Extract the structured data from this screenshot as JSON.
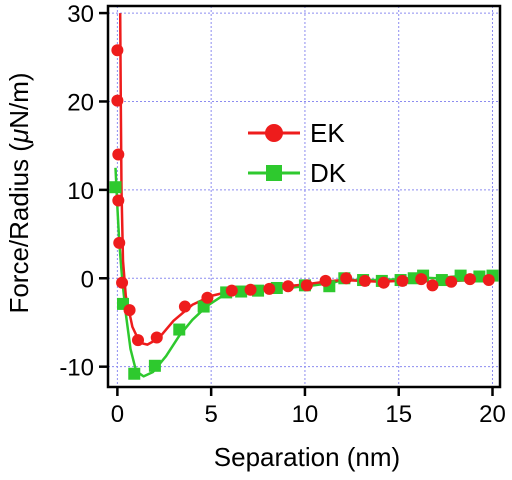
{
  "chart_data": {
    "type": "line",
    "title": "",
    "xlabel": "Separation (nm)",
    "ylabel_prefix": "Force/Radius (",
    "ylabel_mu": "μ",
    "ylabel_suffix": "N/m)",
    "xlim": [
      -0.5,
      20.4
    ],
    "ylim": [
      -12.3,
      30.8
    ],
    "x_ticks": [
      0,
      5,
      10,
      15,
      20
    ],
    "y_ticks": [
      -10,
      0,
      10,
      20,
      30
    ],
    "x_tick_labels": [
      "0",
      "5",
      "10",
      "15",
      "20"
    ],
    "y_tick_labels": [
      "-10",
      "0",
      "10",
      "20",
      "30"
    ],
    "grid": true,
    "legend_position": "center",
    "series": [
      {
        "name": "EK",
        "color": "#ee1c1c",
        "marker": "circle",
        "points": [
          [
            0.0,
            25.8
          ],
          [
            0.0,
            20.1
          ],
          [
            0.05,
            14.0
          ],
          [
            0.05,
            8.8
          ],
          [
            0.1,
            4.0
          ],
          [
            0.25,
            -0.5
          ],
          [
            0.65,
            -3.6
          ],
          [
            1.1,
            -7.0
          ],
          [
            2.1,
            -6.7
          ],
          [
            3.6,
            -3.2
          ],
          [
            4.8,
            -2.2
          ],
          [
            6.1,
            -1.4
          ],
          [
            7.1,
            -1.3
          ],
          [
            8.1,
            -1.2
          ],
          [
            9.1,
            -0.9
          ],
          [
            10.1,
            -0.8
          ],
          [
            11.1,
            -0.3
          ],
          [
            12.2,
            0.0
          ],
          [
            13.2,
            -0.3
          ],
          [
            14.2,
            -0.5
          ],
          [
            15.2,
            -0.3
          ],
          [
            16.2,
            -0.1
          ],
          [
            16.8,
            -0.8
          ],
          [
            17.8,
            -0.4
          ],
          [
            18.8,
            -0.1
          ],
          [
            19.8,
            -0.2
          ]
        ],
        "fit": [
          [
            0.15,
            30.0
          ],
          [
            0.18,
            20.0
          ],
          [
            0.22,
            10.0
          ],
          [
            0.3,
            2.0
          ],
          [
            0.45,
            -2.0
          ],
          [
            0.8,
            -5.5
          ],
          [
            1.2,
            -7.3
          ],
          [
            1.6,
            -7.5
          ],
          [
            2.2,
            -6.8
          ],
          [
            3.0,
            -4.8
          ],
          [
            4.0,
            -3.0
          ],
          [
            5.0,
            -2.0
          ],
          [
            6.0,
            -1.5
          ],
          [
            7.0,
            -1.3
          ],
          [
            8.0,
            -1.1
          ],
          [
            9.0,
            -0.9
          ],
          [
            10.0,
            -0.7
          ],
          [
            11.0,
            -0.4
          ],
          [
            12.0,
            -0.2
          ],
          [
            13.0,
            -0.3
          ],
          [
            14.0,
            -0.4
          ],
          [
            15.0,
            -0.3
          ],
          [
            16.0,
            -0.2
          ],
          [
            17.0,
            -0.5
          ],
          [
            18.0,
            -0.3
          ],
          [
            19.0,
            -0.2
          ],
          [
            20.0,
            -0.2
          ]
        ]
      },
      {
        "name": "DK",
        "color": "#2ec92e",
        "marker": "square",
        "points": [
          [
            -0.1,
            10.3
          ],
          [
            0.3,
            -2.9
          ],
          [
            0.9,
            -10.8
          ],
          [
            2.0,
            -9.9
          ],
          [
            3.3,
            -5.8
          ],
          [
            4.6,
            -3.2
          ],
          [
            5.8,
            -1.6
          ],
          [
            6.6,
            -1.5
          ],
          [
            7.5,
            -1.4
          ],
          [
            8.5,
            -1.1
          ],
          [
            10.0,
            -0.8
          ],
          [
            11.3,
            -0.9
          ],
          [
            12.1,
            0.0
          ],
          [
            13.1,
            -0.2
          ],
          [
            14.1,
            -0.3
          ],
          [
            15.1,
            -0.2
          ],
          [
            15.8,
            0.0
          ],
          [
            16.3,
            0.3
          ],
          [
            17.3,
            -0.2
          ],
          [
            18.3,
            0.3
          ],
          [
            19.3,
            0.2
          ],
          [
            20.0,
            0.3
          ]
        ],
        "fit": [
          [
            -0.1,
            12.5
          ],
          [
            0.0,
            8.0
          ],
          [
            0.1,
            4.0
          ],
          [
            0.25,
            0.0
          ],
          [
            0.45,
            -4.0
          ],
          [
            0.7,
            -8.0
          ],
          [
            1.0,
            -10.5
          ],
          [
            1.4,
            -11.1
          ],
          [
            1.9,
            -10.6
          ],
          [
            2.6,
            -8.8
          ],
          [
            3.3,
            -6.5
          ],
          [
            4.0,
            -4.7
          ],
          [
            4.8,
            -3.1
          ],
          [
            5.6,
            -2.0
          ],
          [
            6.5,
            -1.6
          ],
          [
            7.5,
            -1.4
          ],
          [
            8.5,
            -1.2
          ],
          [
            9.5,
            -1.0
          ],
          [
            10.5,
            -0.8
          ],
          [
            11.5,
            -0.5
          ],
          [
            12.0,
            -0.2
          ],
          [
            13.0,
            -0.2
          ],
          [
            14.0,
            -0.2
          ],
          [
            15.0,
            -0.1
          ],
          [
            16.0,
            0.1
          ],
          [
            17.0,
            0.0
          ],
          [
            18.0,
            0.2
          ],
          [
            19.0,
            0.2
          ],
          [
            20.0,
            0.2
          ]
        ]
      }
    ]
  }
}
